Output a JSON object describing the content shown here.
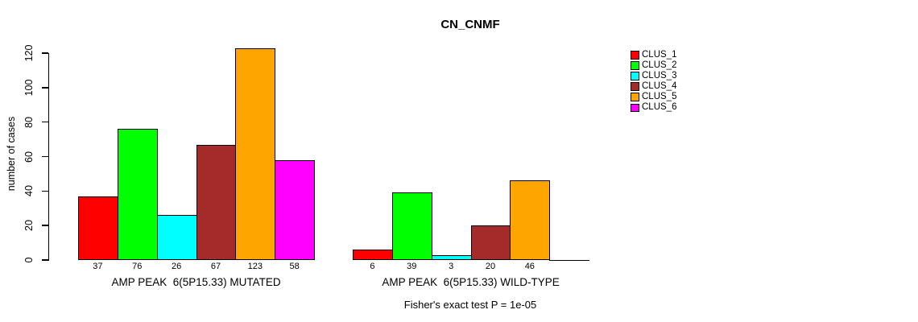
{
  "chart_data": {
    "type": "bar",
    "title": "CN_CNMF",
    "ylabel": "number of cases",
    "xlabel": "",
    "ylim": [
      0,
      123
    ],
    "yticks": [
      0,
      20,
      40,
      60,
      80,
      100,
      120
    ],
    "grid": false,
    "legend_position": "right",
    "categories": [
      "AMP PEAK  6(5P15.33) MUTATED",
      "AMP PEAK  6(5P15.33) WILD-TYPE"
    ],
    "series": [
      {
        "name": "CLUS_1",
        "color": "#FF0000",
        "values": [
          37,
          6
        ]
      },
      {
        "name": "CLUS_2",
        "color": "#00FF00",
        "values": [
          76,
          39
        ]
      },
      {
        "name": "CLUS_3",
        "color": "#00FFFF",
        "values": [
          26,
          3
        ]
      },
      {
        "name": "CLUS_4",
        "color": "#A52A2A",
        "values": [
          67,
          20
        ]
      },
      {
        "name": "CLUS_5",
        "color": "#FFA500",
        "values": [
          123,
          46
        ]
      },
      {
        "name": "CLUS_6",
        "color": "#FF00FF",
        "values": [
          58,
          0
        ]
      }
    ],
    "bar_value_labels": [
      [
        "37",
        "76",
        "26",
        "67",
        "123",
        "58"
      ],
      [
        "6",
        "39",
        "3",
        "20",
        "46",
        ""
      ]
    ],
    "footnote": "Fisher's exact test P = 1e-05",
    "axis_color": "#000000",
    "background_color": "#FFFFFF"
  }
}
